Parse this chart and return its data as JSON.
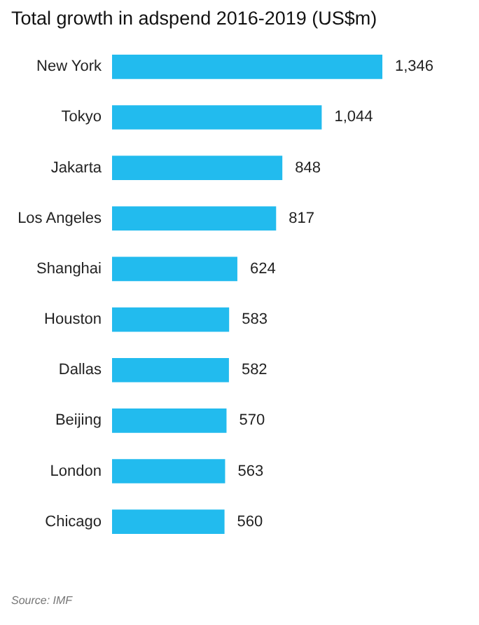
{
  "chart_data": {
    "type": "bar",
    "orientation": "horizontal",
    "title": "Total growth in adspend 2016-2019 (US$m)",
    "categories": [
      "New York",
      "Tokyo",
      "Jakarta",
      "Los Angeles",
      "Shanghai",
      "Houston",
      "Dallas",
      "Beijing",
      "London",
      "Chicago"
    ],
    "values": [
      1346,
      1044,
      848,
      817,
      624,
      583,
      582,
      570,
      563,
      560
    ],
    "value_labels": [
      "1,346",
      "1,044",
      "848",
      "817",
      "624",
      "583",
      "582",
      "570",
      "563",
      "560"
    ],
    "color": "#22bbee",
    "annotations": [
      "Source: IMF"
    ]
  }
}
